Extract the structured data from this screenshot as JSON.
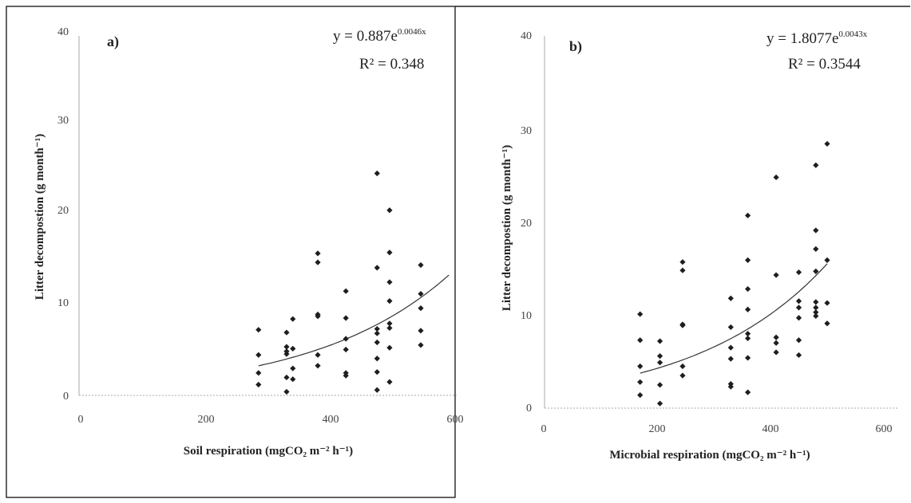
{
  "chart_data": [
    {
      "panel": "a)",
      "type": "scatter",
      "equation": "y = 0.887e",
      "exponent": "0.0046x",
      "r2": "R² = 0.348",
      "xlabel": "Soil respiration (mgCO₂ m⁻² h⁻¹)",
      "ylabel": "Litter decompostion (g month⁻¹)",
      "xlim": [
        0,
        600
      ],
      "ylim": [
        0,
        40
      ],
      "xticks": [
        "0",
        "200",
        "400",
        "600"
      ],
      "yticks": [
        "0",
        "10",
        "20",
        "30",
        "40"
      ],
      "trend": {
        "a": 0.887,
        "b": 0.0046,
        "xmin": 285,
        "xmax": 590
      },
      "points": [
        [
          285,
          7.3
        ],
        [
          285,
          4.5
        ],
        [
          285,
          2.5
        ],
        [
          285,
          1.2
        ],
        [
          330,
          7.0
        ],
        [
          330,
          5.4
        ],
        [
          330,
          4.9
        ],
        [
          330,
          4.6
        ],
        [
          330,
          2.0
        ],
        [
          330,
          0.4
        ],
        [
          340,
          8.5
        ],
        [
          340,
          5.2
        ],
        [
          340,
          3.0
        ],
        [
          340,
          1.8
        ],
        [
          380,
          15.8
        ],
        [
          380,
          14.8
        ],
        [
          380,
          9.0
        ],
        [
          380,
          8.8
        ],
        [
          380,
          4.5
        ],
        [
          380,
          3.3
        ],
        [
          425,
          11.6
        ],
        [
          425,
          8.6
        ],
        [
          425,
          6.3
        ],
        [
          425,
          5.1
        ],
        [
          425,
          2.5
        ],
        [
          425,
          2.2
        ],
        [
          475,
          24.7
        ],
        [
          475,
          14.2
        ],
        [
          475,
          7.4
        ],
        [
          475,
          6.9
        ],
        [
          475,
          5.9
        ],
        [
          475,
          4.1
        ],
        [
          475,
          2.6
        ],
        [
          475,
          0.6
        ],
        [
          495,
          20.6
        ],
        [
          495,
          15.9
        ],
        [
          495,
          12.6
        ],
        [
          495,
          10.5
        ],
        [
          495,
          8.0
        ],
        [
          495,
          7.5
        ],
        [
          495,
          5.3
        ],
        [
          495,
          1.5
        ],
        [
          545,
          14.5
        ],
        [
          545,
          11.3
        ],
        [
          545,
          9.7
        ],
        [
          545,
          7.2
        ],
        [
          545,
          5.6
        ]
      ]
    },
    {
      "panel": "b)",
      "type": "scatter",
      "equation": "y = 1.8077e",
      "exponent": "0.0043x",
      "r2": "R² = 0.3544",
      "xlabel": "Microbial respiration (mgCO₂ m⁻² h⁻¹)",
      "ylabel": "Litter decompostion (g month⁻¹)",
      "xlim": [
        0,
        600
      ],
      "ylim": [
        0,
        40
      ],
      "xticks": [
        "0",
        "200",
        "400",
        "600"
      ],
      "yticks": [
        "0",
        "10",
        "20",
        "30",
        "40"
      ],
      "trend": {
        "a": 1.8077,
        "b": 0.0043,
        "xmin": 170,
        "xmax": 500
      },
      "points": [
        [
          170,
          10.1
        ],
        [
          170,
          7.3
        ],
        [
          170,
          4.5
        ],
        [
          170,
          2.8
        ],
        [
          170,
          1.4
        ],
        [
          205,
          7.2
        ],
        [
          205,
          5.6
        ],
        [
          205,
          4.9
        ],
        [
          205,
          2.5
        ],
        [
          205,
          0.5
        ],
        [
          245,
          15.7
        ],
        [
          245,
          14.8
        ],
        [
          245,
          9.0
        ],
        [
          245,
          8.9
        ],
        [
          245,
          4.5
        ],
        [
          245,
          3.5
        ],
        [
          330,
          11.8
        ],
        [
          330,
          8.7
        ],
        [
          330,
          6.5
        ],
        [
          330,
          5.3
        ],
        [
          330,
          2.6
        ],
        [
          330,
          2.3
        ],
        [
          360,
          20.7
        ],
        [
          360,
          15.9
        ],
        [
          360,
          12.8
        ],
        [
          360,
          10.6
        ],
        [
          360,
          8.0
        ],
        [
          360,
          7.5
        ],
        [
          360,
          5.4
        ],
        [
          360,
          1.7
        ],
        [
          410,
          24.8
        ],
        [
          410,
          14.3
        ],
        [
          410,
          7.6
        ],
        [
          410,
          7.0
        ],
        [
          410,
          6.0
        ],
        [
          450,
          14.6
        ],
        [
          450,
          11.5
        ],
        [
          450,
          10.8
        ],
        [
          450,
          9.7
        ],
        [
          450,
          7.3
        ],
        [
          450,
          5.7
        ],
        [
          480,
          26.1
        ],
        [
          480,
          19.1
        ],
        [
          480,
          17.1
        ],
        [
          480,
          14.7
        ],
        [
          480,
          11.4
        ],
        [
          480,
          10.8
        ],
        [
          480,
          10.3
        ],
        [
          480,
          9.9
        ],
        [
          500,
          28.4
        ],
        [
          500,
          15.9
        ],
        [
          500,
          11.3
        ],
        [
          500,
          9.1
        ]
      ]
    }
  ]
}
